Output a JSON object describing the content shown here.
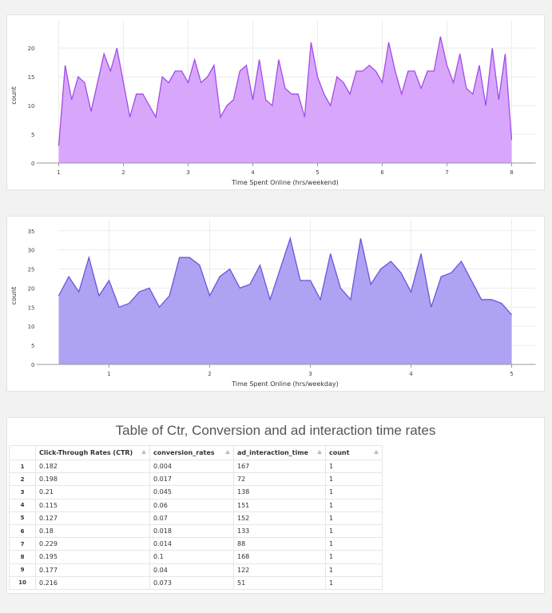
{
  "chart_data": [
    {
      "type": "area",
      "xlabel": "Time Spent Online (hrs/weekend)",
      "ylabel": "count",
      "xlim": [
        1,
        8
      ],
      "ylim": [
        0,
        23.5
      ],
      "x_ticks": [
        1,
        2,
        3,
        4,
        5,
        6,
        7,
        8
      ],
      "y_ticks": [
        0,
        5,
        10,
        15,
        20
      ],
      "grid": true,
      "colors": {
        "line": "#a24ce8",
        "fill": "#d8a7fc"
      },
      "x": [
        1,
        1.1,
        1.2,
        1.3,
        1.4,
        1.5,
        1.6,
        1.7,
        1.8,
        1.9,
        2,
        2.1,
        2.2,
        2.3,
        2.4,
        2.5,
        2.6,
        2.7,
        2.8,
        2.9,
        3,
        3.1,
        3.2,
        3.3,
        3.4,
        3.5,
        3.6,
        3.7,
        3.8,
        3.9,
        4,
        4.1,
        4.2,
        4.3,
        4.4,
        4.5,
        4.6,
        4.7,
        4.8,
        4.9,
        5,
        5.1,
        5.2,
        5.3,
        5.4,
        5.5,
        5.6,
        5.7,
        5.8,
        5.9,
        6,
        6.1,
        6.2,
        6.3,
        6.4,
        6.5,
        6.6,
        6.7,
        6.8,
        6.9,
        7,
        7.1,
        7.2,
        7.3,
        7.4,
        7.5,
        7.6,
        7.7,
        7.8,
        7.9,
        8
      ],
      "values": [
        3,
        17,
        11,
        15,
        14,
        9,
        14,
        19,
        16,
        20,
        14,
        8,
        12,
        12,
        10,
        8,
        15,
        14,
        16,
        16,
        14,
        18,
        14,
        15,
        17,
        8,
        10,
        11,
        16,
        17,
        11,
        18,
        11,
        10,
        18,
        13,
        12,
        12,
        8,
        21,
        15,
        12,
        10,
        15,
        14,
        12,
        16,
        16,
        17,
        16,
        14,
        21,
        16,
        12,
        16,
        16,
        13,
        16,
        16,
        22,
        17,
        14,
        19,
        13,
        12,
        17,
        10,
        20,
        11,
        19,
        4
      ]
    },
    {
      "type": "area",
      "xlabel": "Time Spent Online (hrs/weekday)",
      "ylabel": "count",
      "xlim": [
        0.5,
        5
      ],
      "ylim": [
        0,
        36
      ],
      "x_ticks": [
        1,
        2,
        3,
        4,
        5
      ],
      "y_ticks": [
        0,
        5,
        10,
        15,
        20,
        25,
        30,
        35
      ],
      "grid": true,
      "colors": {
        "line": "#6a55e0",
        "fill": "#aea2f2"
      },
      "x": [
        0.5,
        0.6,
        0.7,
        0.8,
        0.9,
        1,
        1.1,
        1.2,
        1.3,
        1.4,
        1.5,
        1.6,
        1.7,
        1.8,
        1.9,
        2,
        2.1,
        2.2,
        2.3,
        2.4,
        2.5,
        2.6,
        2.7,
        2.8,
        2.9,
        3,
        3.1,
        3.2,
        3.3,
        3.4,
        3.5,
        3.6,
        3.7,
        3.8,
        3.9,
        4,
        4.1,
        4.2,
        4.3,
        4.4,
        4.5,
        4.6,
        4.7,
        4.8,
        4.9,
        5
      ],
      "values": [
        18,
        23,
        19,
        28,
        18,
        22,
        15,
        16,
        19,
        20,
        15,
        18,
        28,
        28,
        26,
        18,
        23,
        25,
        20,
        21,
        26,
        17,
        25,
        33,
        22,
        22,
        17,
        29,
        20,
        17,
        33,
        21,
        25,
        27,
        24,
        19,
        29,
        15,
        23,
        24,
        27,
        22,
        17,
        17,
        16,
        13
      ]
    },
    {
      "type": "table",
      "title": "Table of Ctr, Conversion and ad interaction time rates",
      "columns": [
        "Click-Through Rates (CTR)",
        "conversion_rates",
        "ad_interaction_time",
        "count"
      ],
      "rows": [
        [
          "1",
          "0.182",
          "0.004",
          "167",
          "1"
        ],
        [
          "2",
          "0.198",
          "0.017",
          "72",
          "1"
        ],
        [
          "3",
          "0.21",
          "0.045",
          "138",
          "1"
        ],
        [
          "4",
          "0.115",
          "0.06",
          "151",
          "1"
        ],
        [
          "5",
          "0.127",
          "0.07",
          "152",
          "1"
        ],
        [
          "6",
          "0.18",
          "0.018",
          "133",
          "1"
        ],
        [
          "7",
          "0.229",
          "0.014",
          "88",
          "1"
        ],
        [
          "8",
          "0.195",
          "0.1",
          "168",
          "1"
        ],
        [
          "9",
          "0.177",
          "0.04",
          "122",
          "1"
        ],
        [
          "10",
          "0.216",
          "0.073",
          "51",
          "1"
        ]
      ]
    }
  ]
}
